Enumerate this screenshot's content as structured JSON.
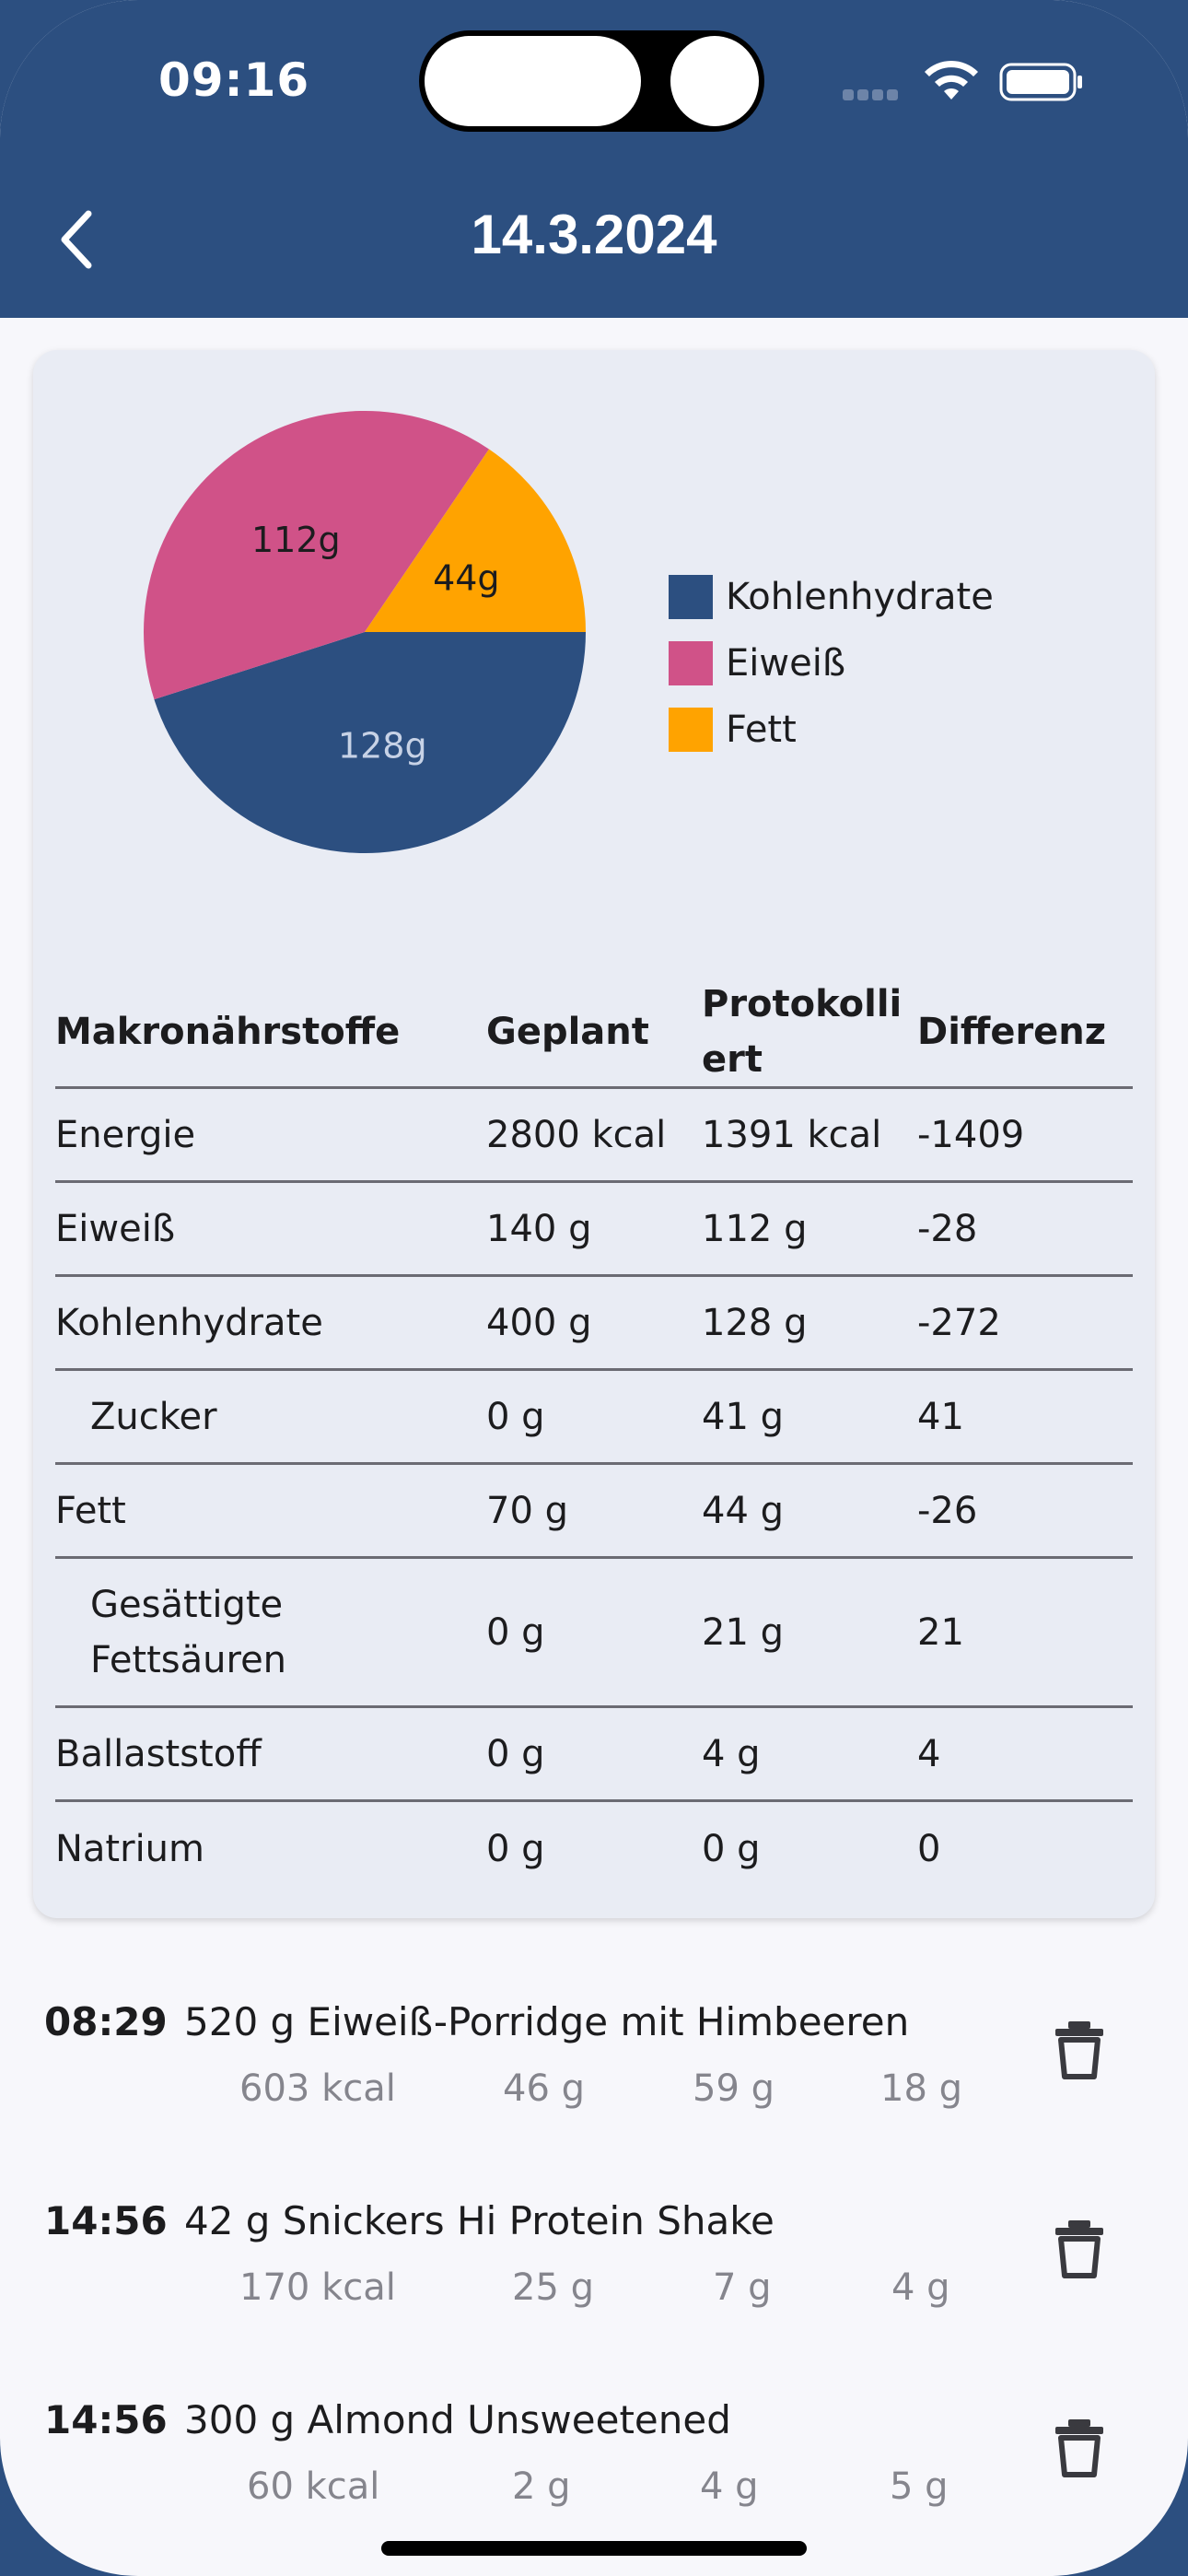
{
  "status_bar": {
    "time": "09:16"
  },
  "header": {
    "title": "14.3.2024",
    "back_icon": "chevron-left-icon"
  },
  "colors": {
    "primary": "#2c4f80",
    "carbs": "#2c4f80",
    "protein": "#d05288",
    "fat": "#ffa300"
  },
  "chart_data": {
    "type": "pie",
    "slices": [
      {
        "name": "Kohlenhydrate",
        "value": 128,
        "label": "128g",
        "color": "#2c4f80"
      },
      {
        "name": "Eiweiß",
        "value": 112,
        "label": "112g",
        "color": "#d05288"
      },
      {
        "name": "Fett",
        "value": 44,
        "label": "44g",
        "color": "#ffa300"
      }
    ],
    "legend": [
      "Kohlenhydrate",
      "Eiweiß",
      "Fett"
    ],
    "legend_position": "right"
  },
  "table": {
    "headers": [
      "Makronährstoffe",
      "Geplant",
      "Protokolli ert",
      "Differenz"
    ],
    "rows": [
      {
        "name": "Energie",
        "planned": "2800 kcal",
        "logged": "1391 kcal",
        "diff": "-1409"
      },
      {
        "name": "Eiweiß",
        "planned": "140 g",
        "logged": "112 g",
        "diff": "-28"
      },
      {
        "name": "Kohlenhydrate",
        "planned": "400 g",
        "logged": "128 g",
        "diff": "-272"
      },
      {
        "name": "Zucker",
        "planned": "0 g",
        "logged": "41 g",
        "diff": "41"
      },
      {
        "name": "Fett",
        "planned": "70 g",
        "logged": "44 g",
        "diff": "-26"
      },
      {
        "name": "Gesättigte Fettsäuren",
        "planned": "0 g",
        "logged": "21 g",
        "diff": "21"
      },
      {
        "name": "Ballaststoff",
        "planned": "0 g",
        "logged": "4 g",
        "diff": "4"
      },
      {
        "name": "Natrium",
        "planned": "0 g",
        "logged": "0 g",
        "diff": "0"
      }
    ]
  },
  "entries": [
    {
      "time": "08:29",
      "name": "520 g Eiweiß-Porridge mit Himbeeren",
      "kcal": "603 kcal",
      "protein": "46 g",
      "carbs": "59 g",
      "fat": "18 g"
    },
    {
      "time": "14:56",
      "name": "42 g Snickers Hi Protein Shake",
      "kcal": "170 kcal",
      "protein": "25 g",
      "carbs": "7 g",
      "fat": "4 g"
    },
    {
      "time": "14:56",
      "name": "300 g Almond Unsweetened",
      "kcal": "60 kcal",
      "protein": "2 g",
      "carbs": "4 g",
      "fat": "5 g"
    }
  ],
  "icons": {
    "delete": "trash-icon",
    "wifi": "wifi-icon",
    "battery": "battery-icon",
    "signal": "signal-icon"
  }
}
